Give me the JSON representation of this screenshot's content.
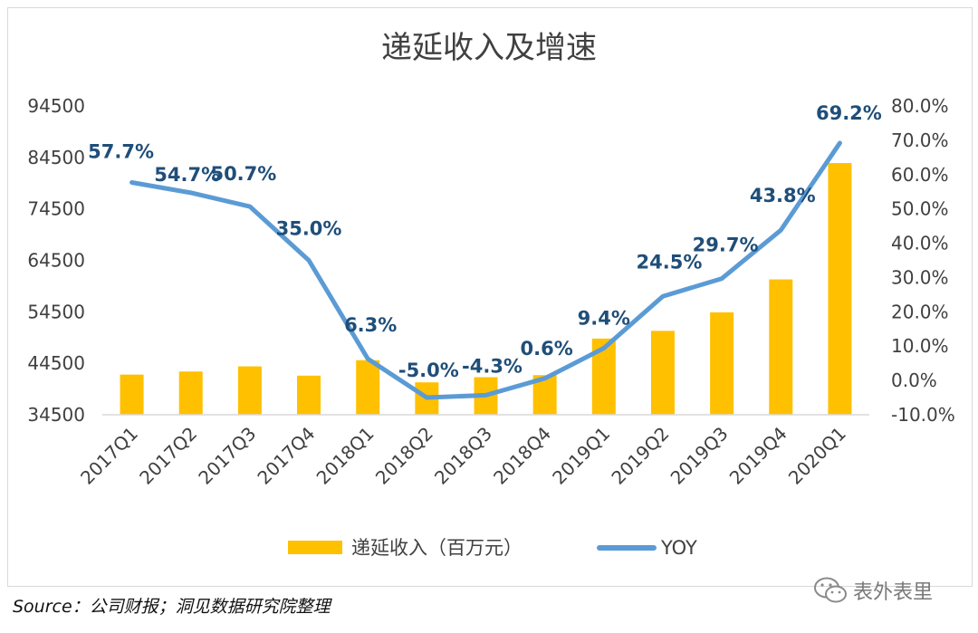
{
  "chart_data": {
    "type": "bar+line",
    "title": "递延收入及增速",
    "categories": [
      "2017Q1",
      "2017Q2",
      "2017Q3",
      "2017Q4",
      "2018Q1",
      "2018Q2",
      "2018Q3",
      "2018Q4",
      "2019Q1",
      "2019Q2",
      "2019Q3",
      "2019Q4",
      "2020Q1"
    ],
    "series": [
      {
        "name": "递延收入（百万元）",
        "type": "bar",
        "axis": "left",
        "color": "#FFC000",
        "values": [
          42300,
          42900,
          43900,
          42100,
          45100,
          40800,
          41800,
          42200,
          49300,
          50800,
          54400,
          60800,
          83400
        ]
      },
      {
        "name": "YOY",
        "type": "line",
        "axis": "right",
        "color": "#5B9BD5",
        "values": [
          57.7,
          54.7,
          50.7,
          35.0,
          6.3,
          -5.0,
          -4.3,
          0.6,
          9.4,
          24.5,
          29.7,
          43.8,
          69.2
        ],
        "labels": [
          "57.7%",
          "54.7%",
          "50.7%",
          "35.0%",
          "6.3%",
          "-5.0%",
          "-4.3%",
          "0.6%",
          "9.4%",
          "24.5%",
          "29.7%",
          "43.8%",
          "69.2%"
        ]
      }
    ],
    "y_left": {
      "min": 34500,
      "max": 94500,
      "ticks": [
        "94500",
        "84500",
        "74500",
        "64500",
        "54500",
        "44500",
        "34500"
      ]
    },
    "y_right": {
      "min": -10,
      "max": 80,
      "ticks": [
        "80.0%",
        "70.0%",
        "60.0%",
        "50.0%",
        "40.0%",
        "30.0%",
        "20.0%",
        "10.0%",
        "0.0%",
        "-10.0%"
      ]
    },
    "grid": false,
    "legend_position": "bottom"
  },
  "label_color": "#1F4E79",
  "source": "Source：公司财报；洞见数据研究院整理",
  "watermark": "表外表里"
}
